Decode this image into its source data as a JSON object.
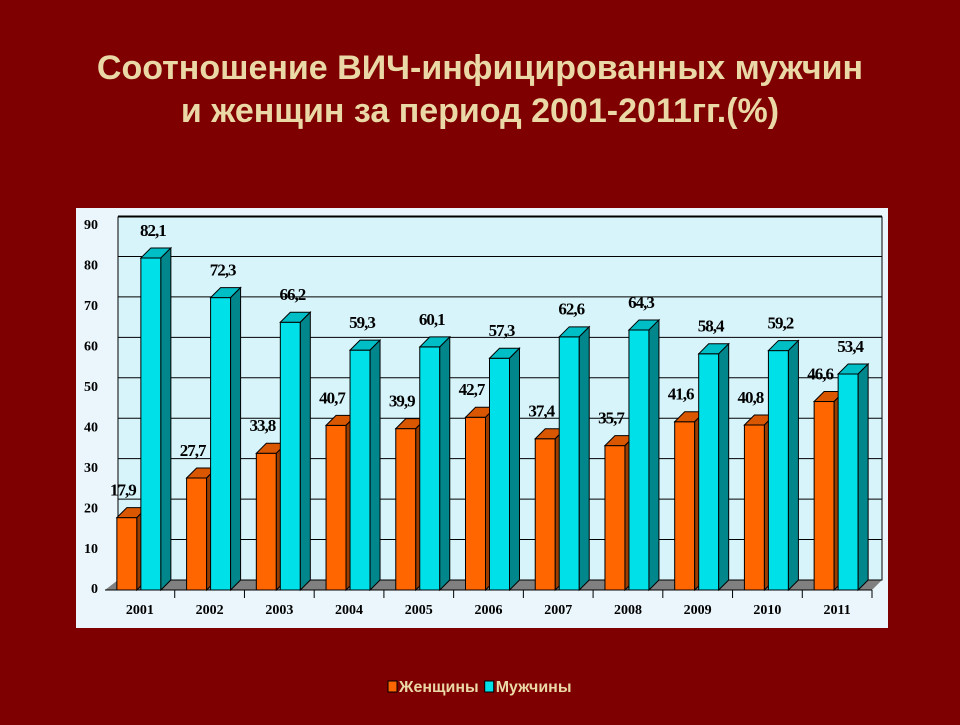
{
  "chart_data": {
    "type": "bar3d",
    "title": [
      "Соотношение ВИЧ-инфицированных мужчин",
      "и женщин за период 2001-2011гг.(%)"
    ],
    "categories": [
      "2001",
      "2002",
      "2003",
      "2004",
      "2005",
      "2006",
      "2007",
      "2008",
      "2009",
      "2010",
      "2011"
    ],
    "series": [
      {
        "name": "Женщины",
        "color": "#ff6600",
        "values": [
          17.9,
          27.7,
          33.8,
          40.7,
          39.9,
          42.7,
          37.4,
          35.7,
          41.6,
          40.8,
          46.6
        ],
        "value_labels": [
          "17,9",
          "27,7",
          "33,8",
          "40,7",
          "39,9",
          "42,7",
          "37,4",
          "35,7",
          "41,6",
          "40,8",
          "46,6"
        ]
      },
      {
        "name": "Мужчины",
        "color": "#00e0e8",
        "values": [
          82.1,
          72.3,
          66.2,
          59.3,
          60.1,
          57.3,
          62.6,
          64.3,
          58.4,
          59.2,
          53.4
        ],
        "value_labels": [
          "82,1",
          "72,3",
          "66,2",
          "59,3",
          "60,1",
          "57,3",
          "62,6",
          "64,3",
          "58,4",
          "59,2",
          "53,4"
        ]
      }
    ],
    "ylim": [
      0,
      90
    ],
    "yticks": [
      0,
      10,
      20,
      30,
      40,
      50,
      60,
      70,
      80,
      90
    ],
    "grid": true,
    "legend": "bottom"
  }
}
